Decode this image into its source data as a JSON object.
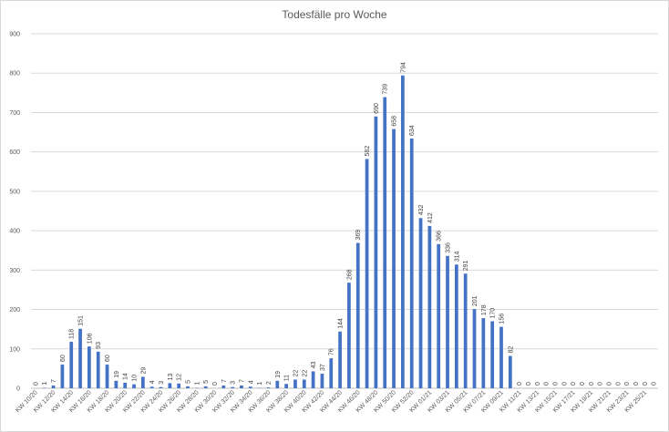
{
  "chart_data": {
    "type": "bar",
    "title": "Todesfälle pro Woche",
    "xlabel": "",
    "ylabel": "",
    "ylim": [
      0,
      900
    ],
    "yticks": [
      0,
      100,
      200,
      300,
      400,
      500,
      600,
      700,
      800,
      900
    ],
    "grid": true,
    "bar_color": "#4472c4",
    "categories": [
      "KW 10/20",
      "KW 11/20",
      "KW 12/20",
      "KW 13/20",
      "KW 14/20",
      "KW 15/20",
      "KW 16/20",
      "KW 17/20",
      "KW 18/20",
      "KW 19/20",
      "KW 20/20",
      "KW 21/20",
      "KW 22/20",
      "KW 23/20",
      "KW 24/20",
      "KW 25/20",
      "KW 26/20",
      "KW 27/20",
      "KW 28/20",
      "KW 29/20",
      "KW 30/20",
      "KW 31/20",
      "KW 32/20",
      "KW 33/20",
      "KW 34/20",
      "KW 35/20",
      "KW 36/20",
      "KW 37/20",
      "KW 38/20",
      "KW 39/20",
      "KW 40/20",
      "KW 41/20",
      "KW 42/20",
      "KW 43/20",
      "KW 44/20",
      "KW 45/20",
      "KW 46/20",
      "KW 47/20",
      "KW 48/20",
      "KW 49/20",
      "KW 50/20",
      "KW 51/20",
      "KW 52/20",
      "KW 53/20",
      "KW 01/21",
      "KW 02/21",
      "KW 03/21",
      "KW 04/21",
      "KW 05/21",
      "KW 06/21",
      "KW 07/21",
      "KW 08/21",
      "KW 09/21",
      "KW 10/21",
      "KW 11/21",
      "KW 12/21",
      "KW 13/21",
      "KW 14/21",
      "KW 15/21",
      "KW 16/21",
      "KW 17/21",
      "KW 18/21",
      "KW 19/21",
      "KW 20/21",
      "KW 21/21",
      "KW 22/21",
      "KW 23/21",
      "KW 24/21",
      "KW 25/21",
      "KW 26/21"
    ],
    "values": [
      0,
      1,
      7,
      60,
      118,
      151,
      106,
      93,
      60,
      19,
      14,
      10,
      29,
      4,
      3,
      13,
      12,
      5,
      1,
      5,
      0,
      7,
      3,
      7,
      4,
      1,
      2,
      19,
      11,
      22,
      22,
      43,
      37,
      76,
      144,
      268,
      369,
      582,
      690,
      739,
      658,
      794,
      634,
      432,
      412,
      366,
      336,
      314,
      291,
      201,
      178,
      170,
      156,
      82,
      0,
      0,
      0,
      0,
      0,
      0,
      0,
      0,
      0,
      0,
      0,
      0,
      0,
      0,
      0,
      0
    ]
  }
}
